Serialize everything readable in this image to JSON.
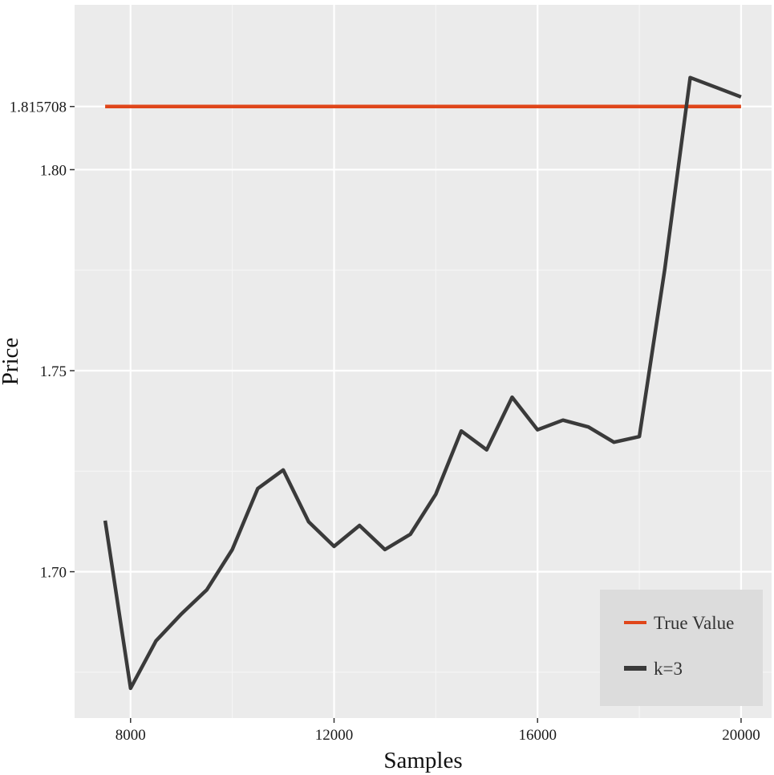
{
  "chart_data": {
    "type": "line",
    "title": "",
    "xlabel": "Samples",
    "ylabel": "Price",
    "xlim": [
      6900,
      20600
    ],
    "ylim": [
      1.6636,
      1.841
    ],
    "x_ticks": [
      {
        "value": 8000,
        "label": "8000"
      },
      {
        "value": 12000,
        "label": "12000"
      },
      {
        "value": 16000,
        "label": "16000"
      },
      {
        "value": 20000,
        "label": "20000"
      }
    ],
    "y_ticks": [
      {
        "value": 1.7,
        "label": "1.70"
      },
      {
        "value": 1.75,
        "label": "1.75"
      },
      {
        "value": 1.8,
        "label": "1.80"
      },
      {
        "value": 1.815708,
        "label": "1.815708"
      }
    ],
    "minor_y_gridlines": [
      1.675,
      1.725,
      1.775
    ],
    "minor_x_gridlines": [
      10000,
      14000,
      18000
    ],
    "grid": true,
    "legend_position": "bottom-right",
    "series": [
      {
        "name": "True Value",
        "color": "#e0461a",
        "x": [
          7500,
          20000
        ],
        "y": [
          1.815708,
          1.815708
        ]
      },
      {
        "name": "k=3",
        "color": "#3a3a3a",
        "x": [
          7500,
          8000,
          8500,
          9000,
          9500,
          10000,
          10500,
          11000,
          11500,
          12000,
          12500,
          13000,
          13500,
          14000,
          14500,
          15000,
          15500,
          16000,
          16500,
          17000,
          17500,
          18000,
          18500,
          19000,
          19500,
          20000
        ],
        "y": [
          1.7127,
          1.671,
          1.6828,
          1.6895,
          1.6955,
          1.7055,
          1.7207,
          1.7253,
          1.7124,
          1.7063,
          1.7115,
          1.7055,
          1.7093,
          1.7193,
          1.735,
          1.7303,
          1.7434,
          1.7353,
          1.7377,
          1.736,
          1.7322,
          1.7336,
          1.7752,
          1.8229,
          1.8205,
          1.8181
        ]
      }
    ],
    "colors": {
      "panel_background": "#ebebeb",
      "grid_major": "#ffffff",
      "grid_minor": "#f5f5f5",
      "legend_background": "#dcdcdc"
    }
  }
}
